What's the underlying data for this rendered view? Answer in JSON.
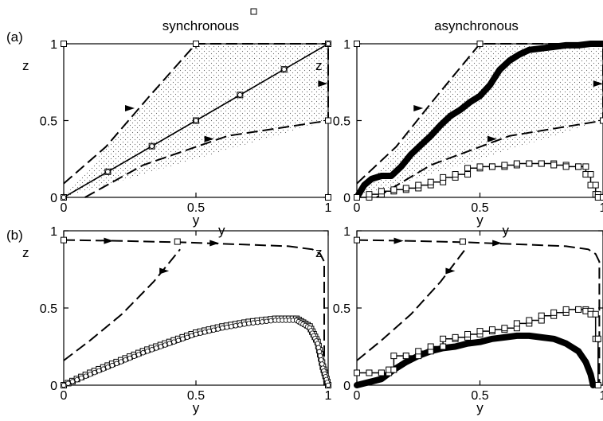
{
  "figure": {
    "row_labels": [
      "(a)",
      "(b)"
    ],
    "column_titles": [
      "synchronous",
      "asynchronous"
    ],
    "top_legend_symbol": "square-marker"
  },
  "chart_data": [
    {
      "id": "a-sync",
      "type": "line",
      "title": "synchronous",
      "row_label": "(a)",
      "xlabel": "y",
      "ylabel": "z",
      "xlim": [
        0,
        1
      ],
      "ylim": [
        0,
        1
      ],
      "xticks": [
        "0",
        "0.5",
        "1"
      ],
      "yticks": [
        "0",
        "0.5",
        "1"
      ],
      "grid": false,
      "region_corners": [
        [
          0,
          0
        ],
        [
          0.5,
          1
        ],
        [
          1,
          1
        ],
        [
          1,
          0.5
        ]
      ],
      "dashed_upper": [
        [
          0,
          0.09
        ],
        [
          0.16,
          0.33
        ],
        [
          0.32,
          0.65
        ],
        [
          0.5,
          1
        ],
        [
          1,
          1
        ]
      ],
      "dashed_lower": [
        [
          0.08,
          0
        ],
        [
          0.3,
          0.21
        ],
        [
          0.62,
          0.4
        ],
        [
          1,
          0.5
        ],
        [
          1,
          1
        ]
      ],
      "arrows": [
        [
          0.25,
          0.58
        ],
        [
          0.55,
          0.38
        ],
        [
          0.98,
          0.74
        ]
      ],
      "series": [
        {
          "marker": "square",
          "x": [
            0,
            1
          ],
          "y": [
            0,
            1
          ]
        },
        {
          "marker": "circle",
          "x": [
            0,
            1
          ],
          "y": [
            0,
            1
          ]
        }
      ],
      "isolated_squares": [
        [
          0,
          1
        ],
        [
          1,
          0
        ]
      ]
    },
    {
      "id": "a-async",
      "type": "line",
      "title": "asynchronous",
      "row_label": "",
      "xlabel": "y",
      "ylabel": "z",
      "xlim": [
        0,
        1
      ],
      "ylim": [
        0,
        1
      ],
      "xticks": [
        "0",
        "0.5",
        "1"
      ],
      "yticks": [
        "0",
        "0.5",
        "1"
      ],
      "grid": false,
      "region_corners": [
        [
          0,
          0
        ],
        [
          0.5,
          1
        ],
        [
          1,
          1
        ],
        [
          1,
          0.5
        ]
      ],
      "dashed_upper": [
        [
          0,
          0.09
        ],
        [
          0.16,
          0.33
        ],
        [
          0.32,
          0.65
        ],
        [
          0.5,
          1
        ],
        [
          1,
          1
        ]
      ],
      "dashed_lower": [
        [
          0.08,
          0
        ],
        [
          0.3,
          0.21
        ],
        [
          0.62,
          0.4
        ],
        [
          1,
          0.5
        ],
        [
          1,
          1
        ]
      ],
      "arrows": [
        [
          0.25,
          0.58
        ],
        [
          0.55,
          0.38
        ],
        [
          0.98,
          0.74
        ]
      ],
      "series": [
        {
          "marker": "thick",
          "x": [
            0,
            0.03,
            0.06,
            0.1,
            0.14,
            0.18,
            0.22,
            0.26,
            0.3,
            0.34,
            0.38,
            0.42,
            0.46,
            0.5,
            0.54,
            0.58,
            0.62,
            0.66,
            0.7,
            0.75,
            0.8,
            0.85,
            0.9,
            0.95,
            1.0
          ],
          "y": [
            0,
            0.08,
            0.12,
            0.14,
            0.14,
            0.2,
            0.28,
            0.34,
            0.4,
            0.47,
            0.53,
            0.57,
            0.62,
            0.66,
            0.73,
            0.83,
            0.89,
            0.93,
            0.96,
            0.97,
            0.98,
            0.99,
            0.99,
            1.0,
            1.0
          ]
        },
        {
          "marker": "square-step",
          "x": [
            0,
            0.05,
            0.1,
            0.15,
            0.2,
            0.25,
            0.3,
            0.35,
            0.4,
            0.45,
            0.5,
            0.55,
            0.6,
            0.65,
            0.7,
            0.75,
            0.8,
            0.85,
            0.9,
            0.93,
            0.95,
            0.97,
            0.98
          ],
          "y": [
            0,
            0.02,
            0.04,
            0.05,
            0.06,
            0.08,
            0.1,
            0.13,
            0.15,
            0.19,
            0.2,
            0.2,
            0.21,
            0.22,
            0.22,
            0.22,
            0.21,
            0.2,
            0.2,
            0.15,
            0.08,
            0.02,
            0
          ]
        }
      ],
      "isolated_squares": [
        [
          0,
          1
        ],
        [
          1,
          0
        ]
      ]
    },
    {
      "id": "b-sync",
      "type": "line",
      "title": "",
      "row_label": "(b)",
      "xlabel": "y",
      "ylabel": "z",
      "xlim": [
        0,
        1
      ],
      "ylim": [
        0,
        1
      ],
      "xticks": [
        "0",
        "0.5",
        "1"
      ],
      "yticks": [
        "0",
        "0.5",
        "1"
      ],
      "grid": false,
      "dashed_top": [
        [
          0,
          0.94
        ],
        [
          0.2,
          0.935
        ],
        [
          0.45,
          0.925
        ],
        [
          0.7,
          0.91
        ],
        [
          0.85,
          0.9
        ],
        [
          0.94,
          0.88
        ],
        [
          0.97,
          0.85
        ],
        [
          0.985,
          0.8
        ],
        [
          0.985,
          0
        ]
      ],
      "dashed_rise": [
        [
          0,
          0.16
        ],
        [
          0.1,
          0.29
        ],
        [
          0.22,
          0.46
        ],
        [
          0.34,
          0.67
        ],
        [
          0.44,
          0.88
        ]
      ],
      "arrows": [
        [
          0.17,
          0.935
        ],
        [
          0.57,
          0.92
        ],
        [
          0.38,
          0.74
        ]
      ],
      "series": [
        {
          "marker": "square",
          "x": [
            0,
            0.1,
            0.2,
            0.3,
            0.4,
            0.5,
            0.6,
            0.7,
            0.8,
            0.88,
            0.93,
            0.96,
            0.98,
            1.0
          ],
          "y": [
            0,
            0.08,
            0.15,
            0.22,
            0.28,
            0.34,
            0.38,
            0.41,
            0.43,
            0.43,
            0.38,
            0.28,
            0.12,
            0
          ]
        },
        {
          "marker": "circle",
          "x": [
            0,
            0.1,
            0.2,
            0.3,
            0.4,
            0.5,
            0.6,
            0.7,
            0.8,
            0.88,
            0.93,
            0.96,
            0.98,
            1.0
          ],
          "y": [
            0,
            0.07,
            0.14,
            0.21,
            0.27,
            0.33,
            0.37,
            0.4,
            0.42,
            0.42,
            0.37,
            0.27,
            0.11,
            0
          ]
        }
      ],
      "isolated_squares": [
        [
          0,
          0.94
        ],
        [
          0.43,
          0.93
        ]
      ]
    },
    {
      "id": "b-async",
      "type": "line",
      "title": "",
      "row_label": "",
      "xlabel": "y",
      "ylabel": "z",
      "xlim": [
        0,
        1
      ],
      "ylim": [
        0,
        1
      ],
      "xticks": [
        "0",
        "0.5",
        "1"
      ],
      "yticks": [
        "0",
        "0.5",
        "1"
      ],
      "grid": false,
      "dashed_top": [
        [
          0,
          0.94
        ],
        [
          0.2,
          0.935
        ],
        [
          0.45,
          0.925
        ],
        [
          0.7,
          0.91
        ],
        [
          0.85,
          0.9
        ],
        [
          0.94,
          0.88
        ],
        [
          0.97,
          0.85
        ],
        [
          0.985,
          0.8
        ],
        [
          0.985,
          0
        ]
      ],
      "dashed_rise": [
        [
          0,
          0.16
        ],
        [
          0.1,
          0.29
        ],
        [
          0.22,
          0.46
        ],
        [
          0.34,
          0.67
        ],
        [
          0.44,
          0.88
        ]
      ],
      "arrows": [
        [
          0.17,
          0.935
        ],
        [
          0.57,
          0.92
        ],
        [
          0.38,
          0.74
        ]
      ],
      "series": [
        {
          "marker": "thick",
          "x": [
            0,
            0.05,
            0.1,
            0.15,
            0.2,
            0.25,
            0.3,
            0.35,
            0.4,
            0.45,
            0.5,
            0.55,
            0.6,
            0.65,
            0.7,
            0.75,
            0.8,
            0.85,
            0.9,
            0.93,
            0.95,
            0.96
          ],
          "y": [
            0,
            0.02,
            0.04,
            0.1,
            0.15,
            0.19,
            0.22,
            0.24,
            0.25,
            0.27,
            0.28,
            0.3,
            0.31,
            0.32,
            0.32,
            0.31,
            0.3,
            0.27,
            0.22,
            0.15,
            0.07,
            0
          ]
        },
        {
          "marker": "square-step",
          "x": [
            0,
            0.05,
            0.1,
            0.13,
            0.15,
            0.2,
            0.25,
            0.3,
            0.35,
            0.4,
            0.45,
            0.5,
            0.55,
            0.6,
            0.65,
            0.7,
            0.75,
            0.8,
            0.85,
            0.9,
            0.93,
            0.95,
            0.97,
            0.98
          ],
          "y": [
            0.08,
            0.08,
            0.08,
            0.1,
            0.19,
            0.19,
            0.22,
            0.25,
            0.3,
            0.31,
            0.33,
            0.35,
            0.36,
            0.37,
            0.4,
            0.42,
            0.45,
            0.47,
            0.49,
            0.49,
            0.48,
            0.46,
            0.3,
            0
          ]
        }
      ],
      "isolated_squares": [
        [
          0,
          0.94
        ],
        [
          0.43,
          0.93
        ]
      ]
    }
  ]
}
